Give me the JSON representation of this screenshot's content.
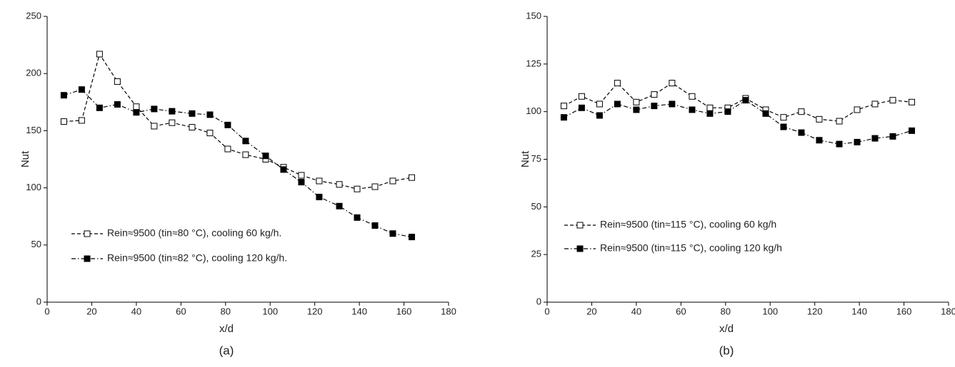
{
  "chart_data": [
    {
      "type": "line",
      "label": "(a)",
      "xlabel": "x/d",
      "ylabel": "Nut",
      "x": [
        7.5,
        15.5,
        23.5,
        31.5,
        40,
        48,
        56,
        65,
        73,
        81,
        89,
        98,
        106,
        114,
        122,
        131,
        139,
        147,
        155,
        163.5
      ],
      "xlim": [
        0,
        180
      ],
      "xticks": [
        0,
        20,
        40,
        60,
        80,
        100,
        120,
        140,
        160,
        180
      ],
      "ylim": [
        0,
        250
      ],
      "yticks": [
        0,
        50,
        100,
        150,
        200,
        250
      ],
      "series": [
        {
          "name": "Rein≈9500 (tin≈80 °C), cooling 60 kg/h.",
          "color": "#000000",
          "marker": "open",
          "line_style": "dashed",
          "values": [
            158,
            159,
            217,
            193,
            171,
            154,
            157,
            153,
            148,
            134,
            129,
            125,
            118,
            111,
            106,
            103,
            99,
            101,
            106,
            109
          ]
        },
        {
          "name": "Rein≈9500 (tin≈82 °C), cooling 120 kg/h.",
          "color": "#000000",
          "marker": "filled",
          "line_style": "dashdot",
          "values": [
            181,
            186,
            170,
            173,
            166,
            169,
            167,
            165,
            164,
            155,
            141,
            128,
            116,
            105,
            92,
            84,
            74,
            67,
            60,
            57
          ]
        }
      ]
    },
    {
      "type": "line",
      "label": "(b)",
      "xlabel": "x/d",
      "ylabel": "Nut",
      "x": [
        7.5,
        15.5,
        23.5,
        31.5,
        40,
        48,
        56,
        65,
        73,
        81,
        89,
        98,
        106,
        114,
        122,
        131,
        139,
        147,
        155,
        163.5
      ],
      "xlim": [
        0,
        180
      ],
      "xticks": [
        0,
        20,
        40,
        60,
        80,
        100,
        120,
        140,
        160,
        180
      ],
      "ylim": [
        0,
        150
      ],
      "yticks": [
        0,
        25,
        50,
        75,
        100,
        125,
        150
      ],
      "series": [
        {
          "name": "Rein≈9500 (tin≈115 °C), cooling 60 kg/h",
          "color": "#000000",
          "marker": "open",
          "line_style": "dashed",
          "values": [
            103,
            108,
            104,
            115,
            105,
            109,
            115,
            108,
            102,
            102,
            107,
            101,
            97,
            100,
            96,
            95,
            101,
            104,
            106,
            105
          ]
        },
        {
          "name": "Rein≈9500 (tin≈115 °C), cooling 120 kg/h",
          "color": "#000000",
          "marker": "filled",
          "line_style": "dashdot",
          "values": [
            97,
            102,
            98,
            104,
            101,
            103,
            104,
            101,
            99,
            100,
            106,
            99,
            92,
            89,
            85,
            83,
            84,
            86,
            87,
            90
          ]
        }
      ]
    }
  ]
}
